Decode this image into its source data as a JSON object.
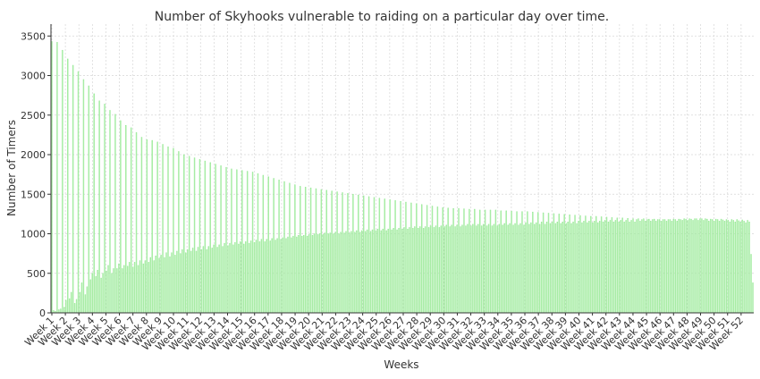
{
  "chart_data": {
    "type": "bar",
    "title": "Number of Skyhooks vulnerable to raiding on a particular day over time.",
    "xlabel": "Weeks",
    "ylabel": "Number of Timers",
    "ylim": [
      0,
      3650
    ],
    "yticks": [
      0,
      500,
      1000,
      1500,
      2000,
      2500,
      3000,
      3500
    ],
    "grid": true,
    "legend": "none",
    "bar_color": "#c8f2c0",
    "edge_color": "#90e890",
    "xtick_labels": [
      "Week 1",
      "Week 2",
      "Week 3",
      "Week 4",
      "Week 5",
      "Week 6",
      "Week 7",
      "Week 8",
      "Week 9",
      "Week 10",
      "Week 11",
      "Week 12",
      "Week 13",
      "Week 14",
      "Week 15",
      "Week 16",
      "Week 17",
      "Week 18",
      "Week 19",
      "Week 20",
      "Week 21",
      "Week 22",
      "Week 23",
      "Week 24",
      "Week 25",
      "Week 26",
      "Week 27",
      "Week 28",
      "Week 29",
      "Week 30",
      "Week 31",
      "Week 32",
      "Week 33",
      "Week 34",
      "Week 35",
      "Week 36",
      "Week 37",
      "Week 38",
      "Week 39",
      "Week 40",
      "Week 41",
      "Week 42",
      "Week 43",
      "Week 44",
      "Week 45",
      "Week 46",
      "Week 47",
      "Week 48",
      "Week 49",
      "Week 50",
      "Week 51",
      "Week 52"
    ],
    "values": [
      3430,
      30,
      20,
      3420,
      40,
      50,
      3320,
      70,
      160,
      3210,
      180,
      260,
      3130,
      120,
      170,
      3050,
      260,
      380,
      2950,
      230,
      330,
      2870,
      420,
      500,
      2770,
      460,
      540,
      2680,
      440,
      500,
      2640,
      530,
      600,
      2560,
      500,
      560,
      2510,
      560,
      620,
      2430,
      560,
      600,
      2370,
      590,
      640,
      2340,
      580,
      640,
      2280,
      600,
      660,
      2220,
      620,
      660,
      2190,
      640,
      700,
      2180,
      660,
      720,
      2160,
      690,
      730,
      2130,
      700,
      760,
      2100,
      710,
      760,
      2080,
      730,
      780,
      2040,
      750,
      800,
      2000,
      760,
      800,
      1980,
      780,
      820,
      1960,
      780,
      830,
      1940,
      800,
      840,
      1920,
      800,
      840,
      1900,
      820,
      860,
      1880,
      830,
      860,
      1860,
      840,
      880,
      1840,
      850,
      880,
      1820,
      860,
      890,
      1810,
      870,
      900,
      1800,
      870,
      900,
      1790,
      880,
      910,
      1780,
      890,
      920,
      1760,
      900,
      930,
      1740,
      900,
      930,
      1720,
      910,
      940,
      1700,
      920,
      940,
      1680,
      930,
      950,
      1660,
      940,
      960,
      1640,
      950,
      970,
      1620,
      960,
      980,
      1600,
      970,
      980,
      1590,
      970,
      990,
      1580,
      980,
      1000,
      1570,
      990,
      1000,
      1560,
      990,
      1010,
      1550,
      1000,
      1010,
      1540,
      1000,
      1020,
      1530,
      1000,
      1020,
      1520,
      1010,
      1030,
      1510,
      1010,
      1030,
      1500,
      1020,
      1040,
      1490,
      1020,
      1040,
      1480,
      1030,
      1050,
      1470,
      1030,
      1050,
      1460,
      1040,
      1060,
      1450,
      1040,
      1060,
      1440,
      1040,
      1060,
      1430,
      1050,
      1070,
      1420,
      1050,
      1070,
      1410,
      1060,
      1080,
      1400,
      1060,
      1080,
      1390,
      1070,
      1090,
      1380,
      1070,
      1090,
      1370,
      1070,
      1090,
      1360,
      1080,
      1100,
      1350,
      1080,
      1100,
      1340,
      1080,
      1100,
      1330,
      1090,
      1110,
      1325,
      1090,
      1110,
      1320,
      1090,
      1110,
      1320,
      1090,
      1110,
      1315,
      1100,
      1120,
      1310,
      1100,
      1120,
      1310,
      1100,
      1120,
      1300,
      1100,
      1120,
      1300,
      1100,
      1120,
      1300,
      1100,
      1120,
      1300,
      1100,
      1120,
      1290,
      1110,
      1130,
      1290,
      1110,
      1130,
      1285,
      1110,
      1130,
      1280,
      1110,
      1130,
      1280,
      1110,
      1140,
      1280,
      1120,
      1140,
      1275,
      1120,
      1140,
      1270,
      1120,
      1150,
      1265,
      1120,
      1150,
      1260,
      1130,
      1150,
      1255,
      1130,
      1150,
      1250,
      1130,
      1150,
      1245,
      1130,
      1150,
      1240,
      1130,
      1150,
      1235,
      1130,
      1160,
      1230,
      1140,
      1160,
      1225,
      1140,
      1160,
      1220,
      1140,
      1160,
      1220,
      1140,
      1160,
      1215,
      1150,
      1170,
      1210,
      1150,
      1170,
      1205,
      1150,
      1170,
      1200,
      1150,
      1170,
      1200,
      1150,
      1170,
      1195,
      1150,
      1170,
      1190,
      1150,
      1180,
      1190,
      1160,
      1180,
      1190,
      1160,
      1180,
      1185,
      1160,
      1180,
      1185,
      1160,
      1180,
      1180,
      1160,
      1180,
      1180,
      1160,
      1180,
      1180,
      1160,
      1185,
      1180,
      1160,
      1185,
      1180,
      1170,
      1190,
      1185,
      1170,
      1190,
      1185,
      1170,
      1190,
      1190,
      1170,
      1190,
      1190,
      1170,
      1190,
      1185,
      1160,
      1185,
      1180,
      1160,
      1185,
      1180,
      1160,
      1185,
      1175,
      1160,
      1180,
      1170,
      1150,
      1180,
      1170,
      1150,
      1180,
      1165,
      1150,
      1175,
      1160,
      1140,
      1170,
      1150,
      740,
      380
    ]
  }
}
